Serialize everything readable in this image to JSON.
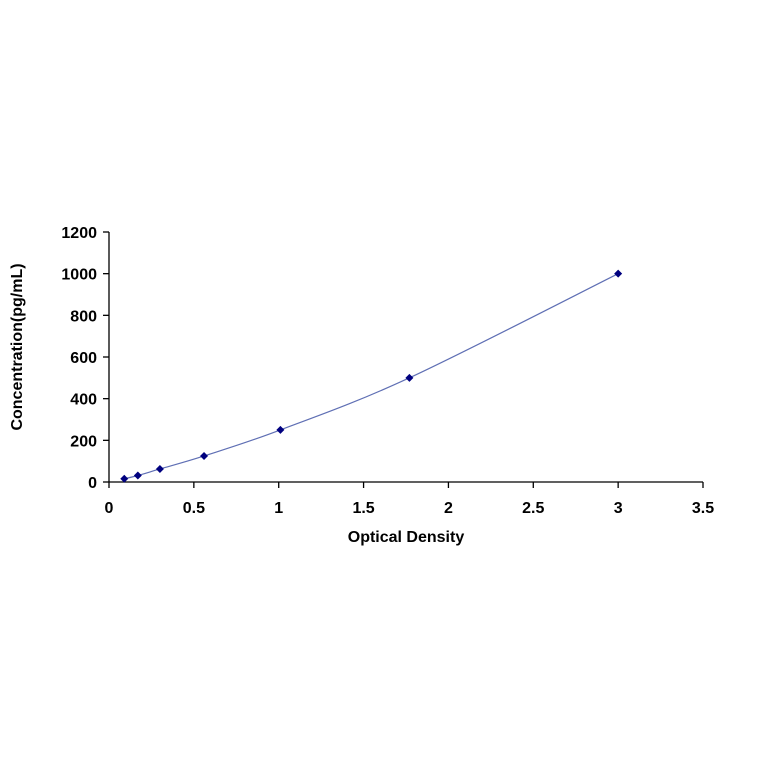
{
  "chart_data": {
    "type": "scatter",
    "xlabel": "Optical Density",
    "ylabel": "Concentration(pg/mL)",
    "xlim": [
      0,
      3.5
    ],
    "ylim": [
      0,
      1200
    ],
    "xticks": [
      "0",
      "0.5",
      "1",
      "1.5",
      "2",
      "2.5",
      "3",
      "3.5"
    ],
    "yticks": [
      "0",
      "200",
      "400",
      "600",
      "800",
      "1000",
      "1200"
    ],
    "grid": false,
    "legend": "none",
    "series": [
      {
        "marker": "diamond",
        "line": "smooth",
        "x": [
          0.09,
          0.17,
          0.3,
          0.56,
          1.01,
          1.77,
          3.0
        ],
        "y": [
          15.6,
          31.2,
          62.5,
          125,
          250,
          500,
          1000
        ]
      }
    ],
    "colors": {
      "series": "#00007F",
      "curve": "#5F6FB4",
      "axis": "#000000"
    }
  }
}
